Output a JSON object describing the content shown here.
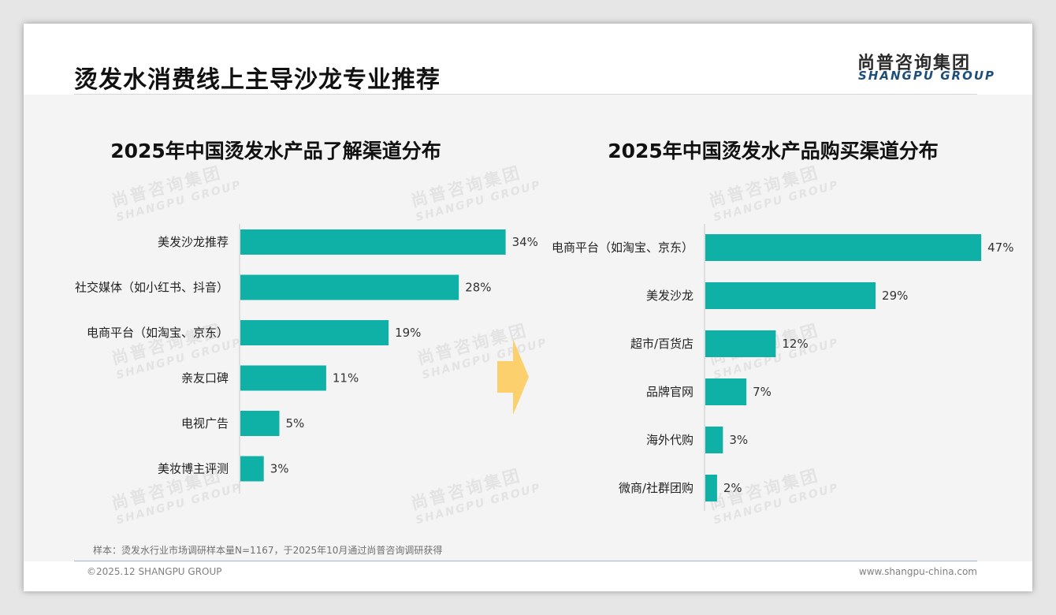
{
  "page_title": "烫发水消费线上主导沙龙专业推荐",
  "logo": {
    "cn": "尚普咨询集团",
    "en": "SHANGPU GROUP"
  },
  "watermark": {
    "cn": "尚普咨询集团",
    "en": "SHANGPU GROUP"
  },
  "colors": {
    "bar": "#0fb0a6",
    "arrow": "#fcd06d",
    "logo_en": "#1f4e79"
  },
  "chart_data": [
    {
      "type": "bar",
      "orientation": "horizontal",
      "title": "2025年中国烫发水产品了解渠道分布",
      "categories": [
        "美发沙龙推荐",
        "社交媒体（如小红书、抖音）",
        "电商平台（如淘宝、京东）",
        "亲友口碑",
        "电视广告",
        "美妆博主评测"
      ],
      "values": [
        34,
        28,
        19,
        11,
        5,
        3
      ],
      "value_labels": [
        "34%",
        "28%",
        "19%",
        "11%",
        "5%",
        "3%"
      ],
      "unit": "%",
      "grid": false
    },
    {
      "type": "bar",
      "orientation": "horizontal",
      "title": "2025年中国烫发水产品购买渠道分布",
      "categories": [
        "电商平台（如淘宝、京东）",
        "美发沙龙",
        "超市/百货店",
        "品牌官网",
        "海外代购",
        "微商/社群团购"
      ],
      "values": [
        47,
        29,
        12,
        7,
        3,
        2
      ],
      "value_labels": [
        "47%",
        "29%",
        "12%",
        "7%",
        "3%",
        "2%"
      ],
      "unit": "%",
      "grid": false
    }
  ],
  "footnote": "样本：烫发水行业市场调研样本量N=1167，于2025年10月通过尚普咨询调研获得",
  "copyright": "©2025.12 SHANGPU GROUP",
  "website": "www.shangpu-china.com"
}
